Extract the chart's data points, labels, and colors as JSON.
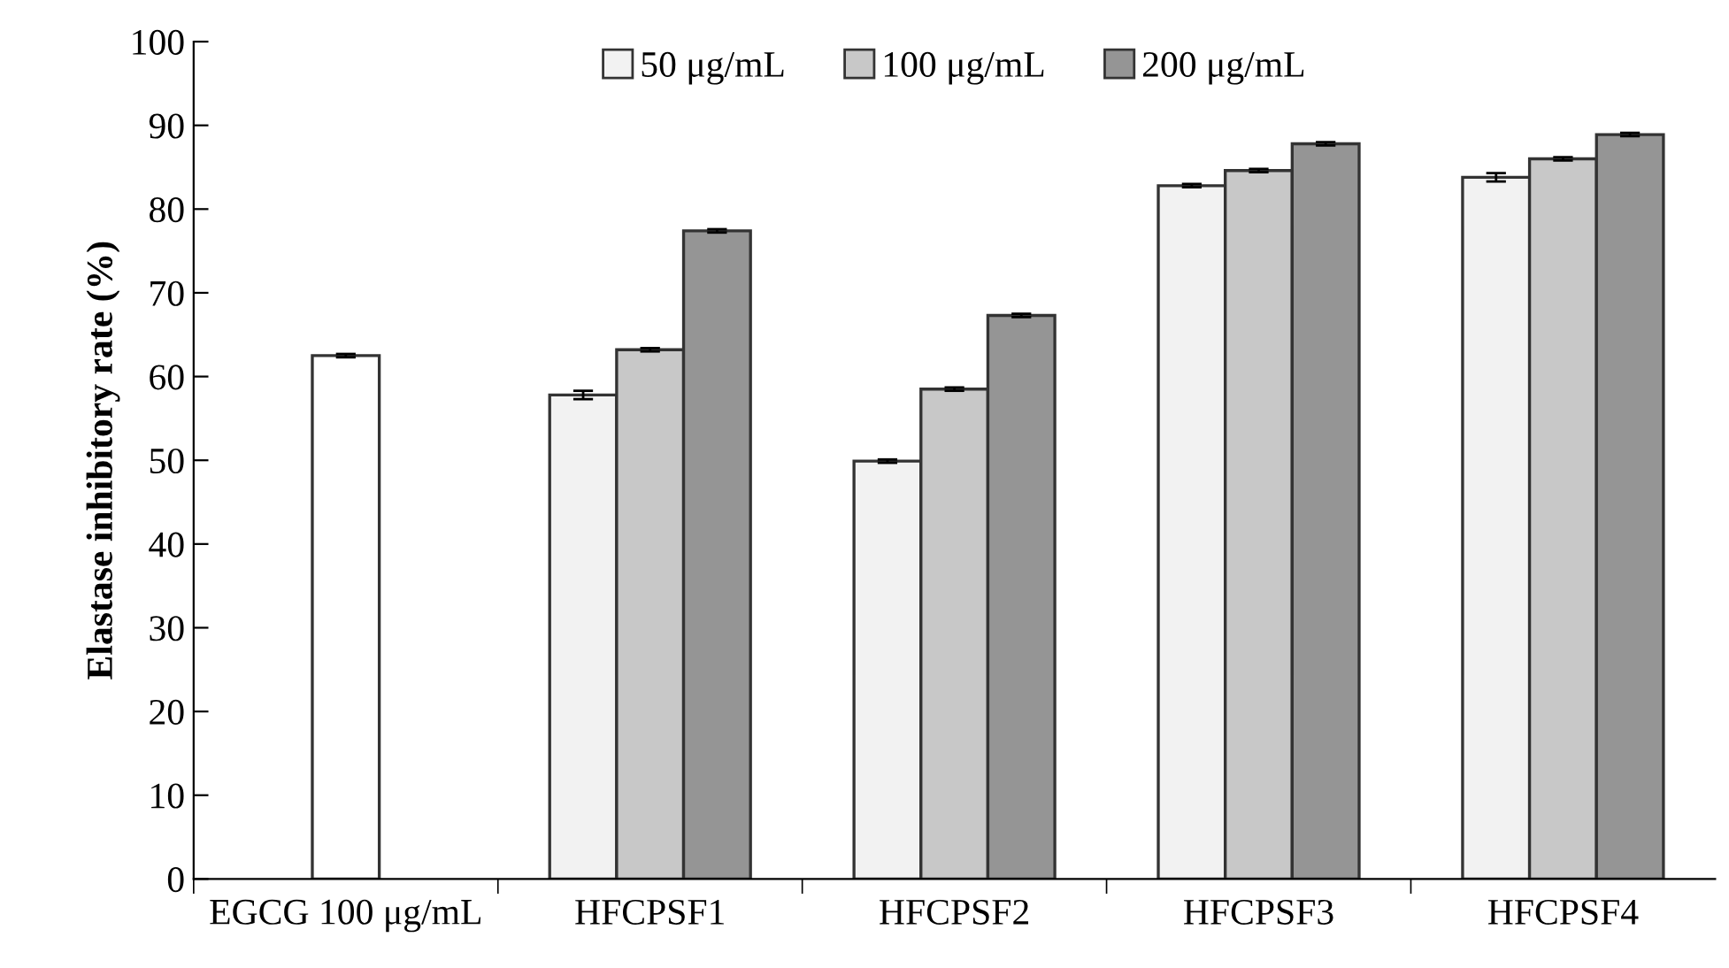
{
  "chart_data": {
    "type": "bar",
    "ylabel": "Elastase inhibitory rate (%)",
    "categories": [
      "EGCG 100 μg/mL",
      "HFCPSF1",
      "HFCPSF2",
      "HFCPSF3",
      "HFCPSF4"
    ],
    "series": [
      {
        "name": "50 μg/mL",
        "color": "#f2f2f2",
        "values": [
          null,
          57.8,
          49.9,
          82.8,
          83.8
        ],
        "errors": [
          null,
          0.5,
          0.2,
          0.2,
          0.5
        ]
      },
      {
        "name": "100 μg/mL",
        "color": "#c8c8c8",
        "colors": [
          "#ffffff",
          "#c8c8c8",
          "#c8c8c8",
          "#c8c8c8",
          "#c8c8c8"
        ],
        "values": [
          62.5,
          63.2,
          58.5,
          84.6,
          86.0
        ],
        "errors": [
          0.2,
          0.2,
          0.2,
          0.2,
          0.2
        ]
      },
      {
        "name": "200 μg/mL",
        "color": "#959595",
        "values": [
          null,
          77.4,
          67.3,
          87.8,
          88.9
        ],
        "errors": [
          null,
          0.2,
          0.2,
          0.2,
          0.2
        ]
      }
    ],
    "ylim": [
      0,
      100
    ],
    "yticks": [
      0,
      10,
      20,
      30,
      40,
      50,
      60,
      70,
      80,
      90,
      100
    ],
    "grid": false,
    "legend": "top"
  }
}
